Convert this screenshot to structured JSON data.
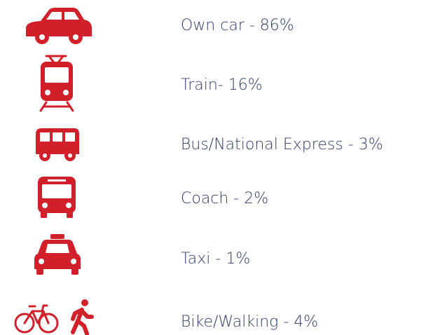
{
  "items": [
    {
      "text": "Own car - 86%"
    },
    {
      "text": "Train- 16%"
    },
    {
      "text": "Bus/National Express - 3%"
    },
    {
      "text": "Coach - 2%"
    },
    {
      "text": "Taxi - 1%"
    },
    {
      "text": "Bike/Walking - 4%"
    }
  ]
}
